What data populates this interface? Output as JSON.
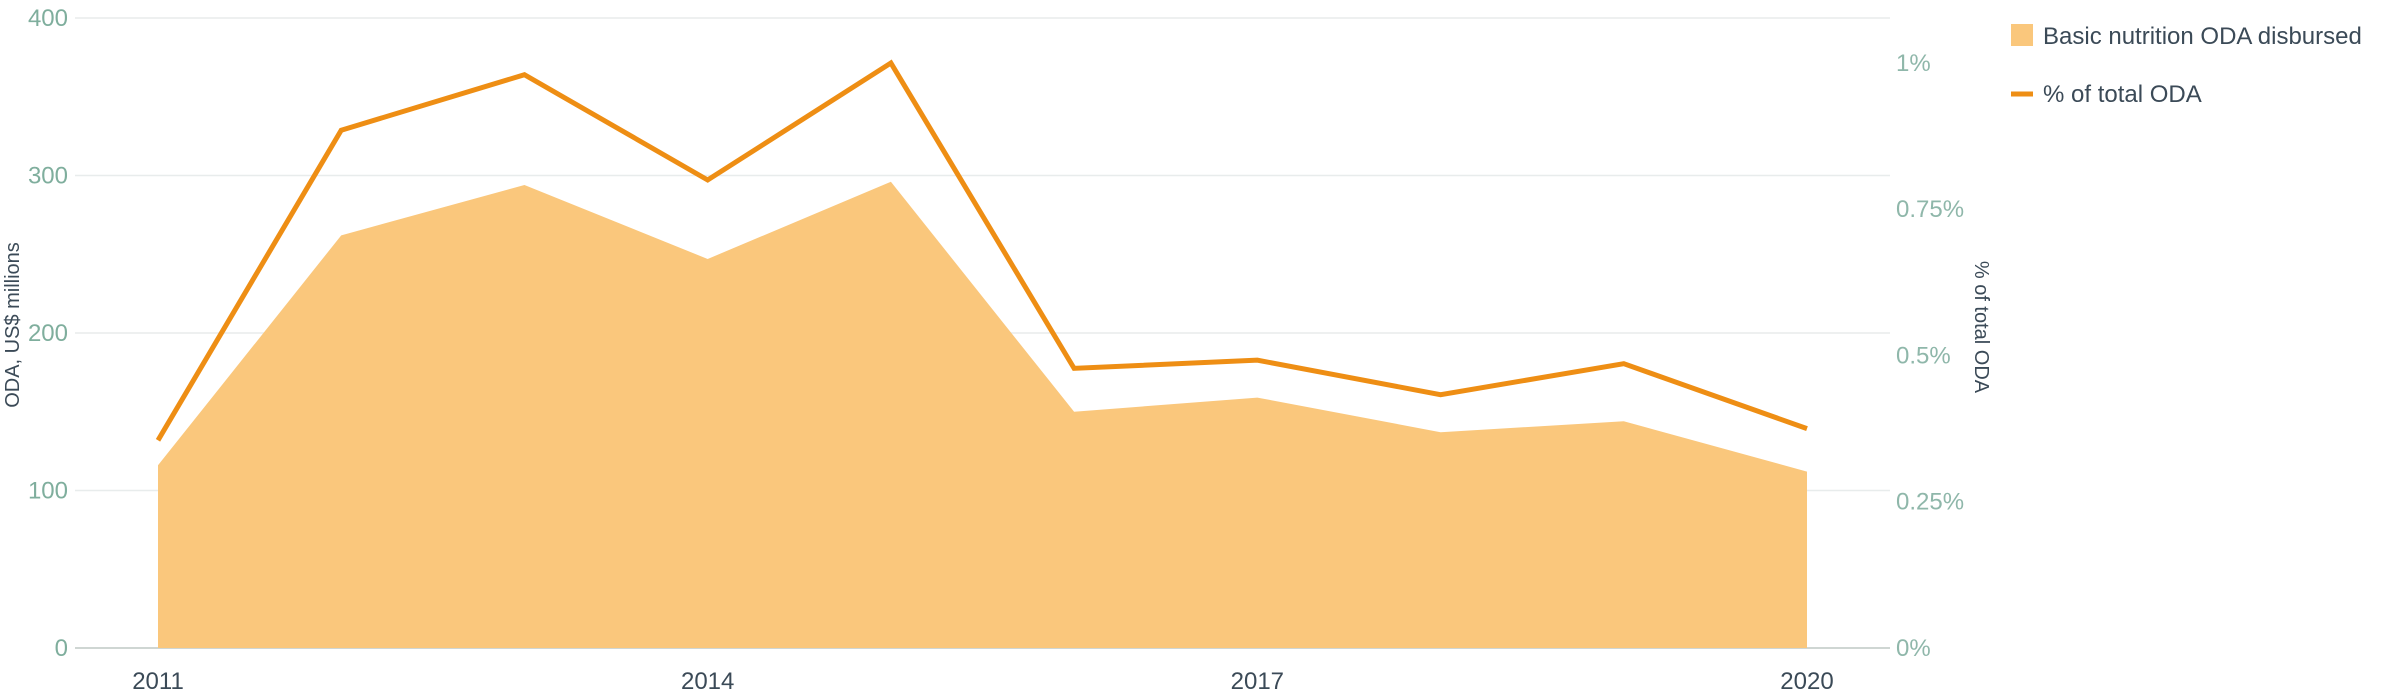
{
  "chart_data": {
    "type": "area",
    "title": "",
    "x": [
      2011,
      2012,
      2013,
      2014,
      2015,
      2016,
      2017,
      2018,
      2019,
      2020
    ],
    "x_tick_labels": [
      "2011",
      "2014",
      "2017",
      "2020"
    ],
    "x_tick_values": [
      2011,
      2014,
      2017,
      2020
    ],
    "y_left": {
      "label": "ODA, US$ millions",
      "range": [
        0,
        400
      ],
      "ticks": [
        0,
        100,
        200,
        300,
        400
      ],
      "tick_labels": [
        "0",
        "100",
        "200",
        "300",
        "400"
      ]
    },
    "y_right": {
      "label": "% of total ODA",
      "range": [
        0,
        1.0769
      ],
      "ticks": [
        0,
        0.25,
        0.5,
        0.75,
        1.0
      ],
      "tick_labels": [
        "0%",
        "0.25%",
        "0.5%",
        "0.75%",
        "1%"
      ]
    },
    "series": [
      {
        "name": "Basic nutrition ODA disbursed",
        "type": "area",
        "axis": "left",
        "color": "#fac77c",
        "values": [
          116,
          262,
          294,
          247,
          296,
          150,
          159,
          137,
          144,
          112
        ]
      },
      {
        "name": "% of total ODA",
        "type": "line",
        "axis": "right",
        "color": "#ee8e14",
        "values": [
          0.355,
          0.885,
          0.98,
          0.8,
          1.0,
          0.478,
          0.492,
          0.433,
          0.486,
          0.375
        ]
      }
    ],
    "grid": true,
    "legend": "top-right"
  }
}
